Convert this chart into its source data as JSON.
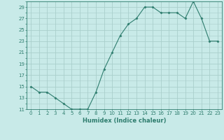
{
  "x": [
    0,
    1,
    2,
    3,
    4,
    5,
    6,
    7,
    8,
    9,
    10,
    11,
    12,
    13,
    14,
    15,
    16,
    17,
    18,
    19,
    20,
    21,
    22,
    23
  ],
  "y": [
    15,
    14,
    14,
    13,
    12,
    11,
    11,
    11,
    14,
    18,
    21,
    24,
    26,
    27,
    29,
    29,
    28,
    28,
    28,
    27,
    30,
    27,
    23,
    23
  ],
  "ylim": [
    11,
    30
  ],
  "yticks": [
    11,
    13,
    15,
    17,
    19,
    21,
    23,
    25,
    27,
    29
  ],
  "xticks": [
    0,
    1,
    2,
    3,
    4,
    5,
    6,
    7,
    8,
    9,
    10,
    11,
    12,
    13,
    14,
    15,
    16,
    17,
    18,
    19,
    20,
    21,
    22,
    23
  ],
  "xlabel": "Humidex (Indice chaleur)",
  "line_color": "#2E7D6E",
  "marker": "D",
  "marker_size": 1.5,
  "bg_color": "#C8EAE8",
  "grid_major_color": "#AACFCC",
  "grid_minor_color": "#BBDAD8",
  "tick_color": "#2E7D6E",
  "label_color": "#2E7D6E",
  "spine_color": "#2E7D6E",
  "tick_fontsize": 5.0,
  "label_fontsize": 6.0
}
